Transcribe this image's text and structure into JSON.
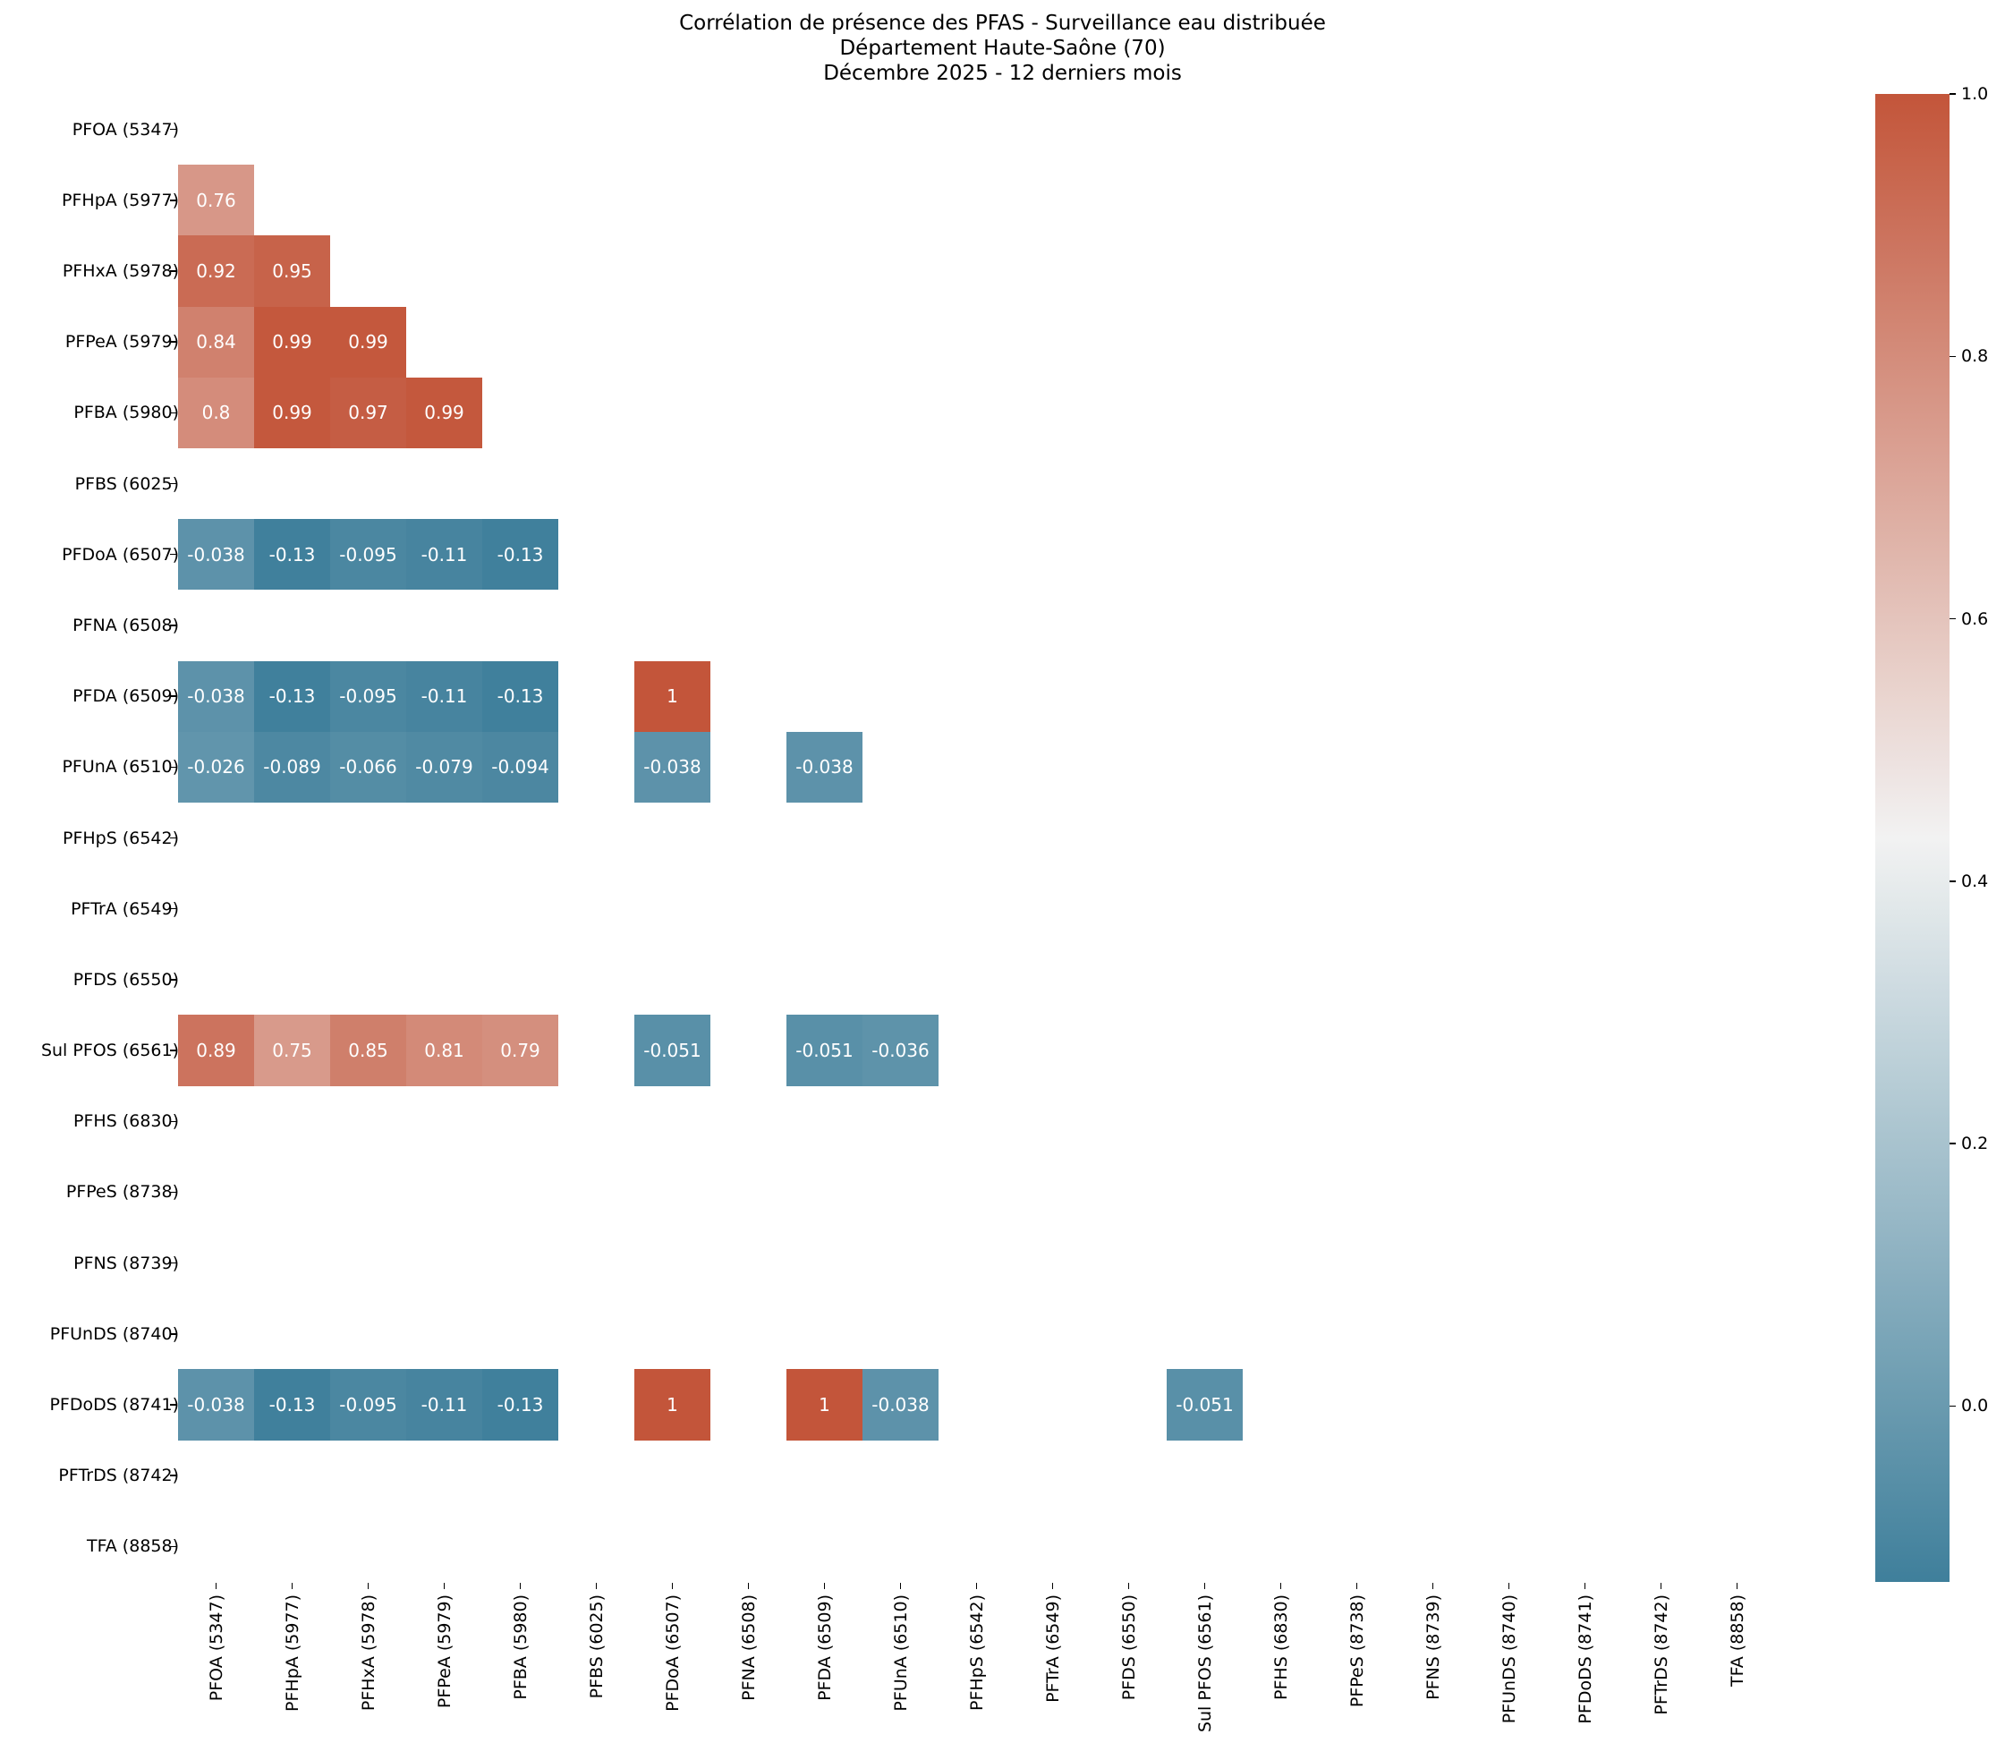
{
  "chart_data": {
    "type": "heatmap",
    "title": "Corrélation de présence des PFAS - Surveillance eau distribuée",
    "subtitle_lines": [
      "Département Haute-Saône (70)",
      "Décembre 2025 - 12 derniers mois"
    ],
    "xlabel": "",
    "ylabel": "",
    "labels": [
      "PFOA (5347)",
      "PFHpA (5977)",
      "PFHxA (5978)",
      "PFPeA (5979)",
      "PFBA (5980)",
      "PFBS (6025)",
      "PFDoA (6507)",
      "PFNA (6508)",
      "PFDA (6509)",
      "PFUnA (6510)",
      "PFHpS (6542)",
      "PFTrA (6549)",
      "PFDS (6550)",
      "Sul PFOS (6561)",
      "PFHS (6830)",
      "PFPeS (8738)",
      "PFNS (8739)",
      "PFUnDS (8740)",
      "PFDoDS (8741)",
      "PFTrDS (8742)",
      "TFA (8858)"
    ],
    "mask": "upper triangle and diagonal hidden; rows/columns with undefined correlation left blank",
    "cells": [
      {
        "row": 1,
        "col": 0,
        "label": "0.76",
        "value": 0.76
      },
      {
        "row": 2,
        "col": 0,
        "label": "0.92",
        "value": 0.92
      },
      {
        "row": 2,
        "col": 1,
        "label": "0.95",
        "value": 0.95
      },
      {
        "row": 3,
        "col": 0,
        "label": "0.84",
        "value": 0.84
      },
      {
        "row": 3,
        "col": 1,
        "label": "0.99",
        "value": 0.99
      },
      {
        "row": 3,
        "col": 2,
        "label": "0.99",
        "value": 0.99
      },
      {
        "row": 4,
        "col": 0,
        "label": "0.8",
        "value": 0.8
      },
      {
        "row": 4,
        "col": 1,
        "label": "0.99",
        "value": 0.99
      },
      {
        "row": 4,
        "col": 2,
        "label": "0.97",
        "value": 0.97
      },
      {
        "row": 4,
        "col": 3,
        "label": "0.99",
        "value": 0.99
      },
      {
        "row": 6,
        "col": 0,
        "label": "-0.038",
        "value": -0.038
      },
      {
        "row": 6,
        "col": 1,
        "label": "-0.13",
        "value": -0.13
      },
      {
        "row": 6,
        "col": 2,
        "label": "-0.095",
        "value": -0.095
      },
      {
        "row": 6,
        "col": 3,
        "label": "-0.11",
        "value": -0.11
      },
      {
        "row": 6,
        "col": 4,
        "label": "-0.13",
        "value": -0.13
      },
      {
        "row": 8,
        "col": 0,
        "label": "-0.038",
        "value": -0.038
      },
      {
        "row": 8,
        "col": 1,
        "label": "-0.13",
        "value": -0.13
      },
      {
        "row": 8,
        "col": 2,
        "label": "-0.095",
        "value": -0.095
      },
      {
        "row": 8,
        "col": 3,
        "label": "-0.11",
        "value": -0.11
      },
      {
        "row": 8,
        "col": 4,
        "label": "-0.13",
        "value": -0.13
      },
      {
        "row": 8,
        "col": 6,
        "label": "1",
        "value": 1.0
      },
      {
        "row": 9,
        "col": 0,
        "label": "-0.026",
        "value": -0.026
      },
      {
        "row": 9,
        "col": 1,
        "label": "-0.089",
        "value": -0.089
      },
      {
        "row": 9,
        "col": 2,
        "label": "-0.066",
        "value": -0.066
      },
      {
        "row": 9,
        "col": 3,
        "label": "-0.079",
        "value": -0.079
      },
      {
        "row": 9,
        "col": 4,
        "label": "-0.094",
        "value": -0.094
      },
      {
        "row": 9,
        "col": 6,
        "label": "-0.038",
        "value": -0.038
      },
      {
        "row": 9,
        "col": 8,
        "label": "-0.038",
        "value": -0.038
      },
      {
        "row": 13,
        "col": 0,
        "label": "0.89",
        "value": 0.89
      },
      {
        "row": 13,
        "col": 1,
        "label": "0.75",
        "value": 0.75
      },
      {
        "row": 13,
        "col": 2,
        "label": "0.85",
        "value": 0.85
      },
      {
        "row": 13,
        "col": 3,
        "label": "0.81",
        "value": 0.81
      },
      {
        "row": 13,
        "col": 4,
        "label": "0.79",
        "value": 0.79
      },
      {
        "row": 13,
        "col": 6,
        "label": "-0.051",
        "value": -0.051
      },
      {
        "row": 13,
        "col": 8,
        "label": "-0.051",
        "value": -0.051
      },
      {
        "row": 13,
        "col": 9,
        "label": "-0.036",
        "value": -0.036
      },
      {
        "row": 18,
        "col": 0,
        "label": "-0.038",
        "value": -0.038
      },
      {
        "row": 18,
        "col": 1,
        "label": "-0.13",
        "value": -0.13
      },
      {
        "row": 18,
        "col": 2,
        "label": "-0.095",
        "value": -0.095
      },
      {
        "row": 18,
        "col": 3,
        "label": "-0.11",
        "value": -0.11
      },
      {
        "row": 18,
        "col": 4,
        "label": "-0.13",
        "value": -0.13
      },
      {
        "row": 18,
        "col": 6,
        "label": "1",
        "value": 1.0
      },
      {
        "row": 18,
        "col": 8,
        "label": "1",
        "value": 1.0
      },
      {
        "row": 18,
        "col": 9,
        "label": "-0.038",
        "value": -0.038
      },
      {
        "row": 18,
        "col": 13,
        "label": "-0.051",
        "value": -0.051
      }
    ],
    "colorbar": {
      "ticks": [
        "0.0",
        "0.2",
        "0.4",
        "0.6",
        "0.8",
        "1.0"
      ],
      "tick_values": [
        0.0,
        0.2,
        0.4,
        0.6,
        0.8,
        1.0
      ],
      "vmin": -0.134,
      "vmax": 1.0,
      "colormap": "diverging blue-white-red",
      "color_low": "#3f7f9b",
      "color_mid": "#f2f2f2",
      "color_high": "#c3553a"
    },
    "grid": false,
    "legend": "colorbar right"
  }
}
